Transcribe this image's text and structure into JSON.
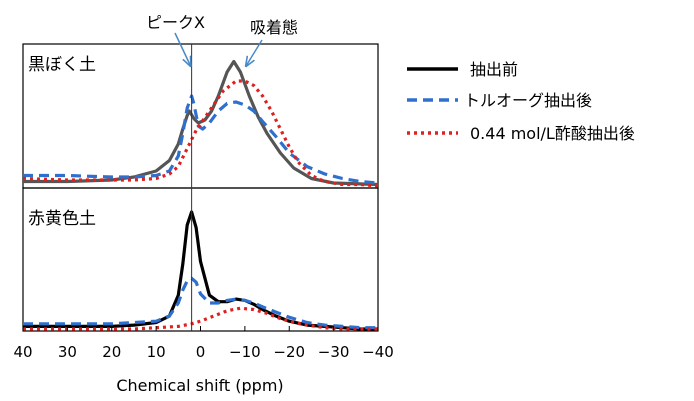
{
  "chart_data": [
    {
      "type": "line",
      "panel_label": "黒ぼく土",
      "xlabel": "Chemical shift (ppm)",
      "xlim": [
        40,
        -40
      ],
      "x_ticks": [
        40,
        30,
        20,
        10,
        0,
        -10,
        -20,
        -30,
        -40
      ],
      "x_tick_labels": [
        "40",
        "30",
        "20",
        "10",
        "0",
        "−10",
        "−20",
        "−30",
        "−40"
      ],
      "y_ticks": false,
      "grid": false,
      "legend_position": "right",
      "reference_line_x": 2,
      "annotations": [
        {
          "text": "ピークX",
          "points_to_x": 2
        },
        {
          "text": "吸着態",
          "points_to_x": -8
        }
      ],
      "series": [
        {
          "name": "抽出前",
          "color": "#555555",
          "style": "solid",
          "x": [
            40,
            30,
            20,
            15,
            10,
            7,
            5,
            4,
            3,
            2.5,
            1.5,
            0.5,
            -1,
            -2.5,
            -4,
            -6,
            -7.5,
            -9,
            -11,
            -13,
            -15,
            -18,
            -21,
            -25,
            -30,
            -40
          ],
          "y": [
            0.03,
            0.03,
            0.04,
            0.06,
            0.1,
            0.17,
            0.28,
            0.38,
            0.47,
            0.5,
            0.45,
            0.42,
            0.44,
            0.5,
            0.6,
            0.76,
            0.83,
            0.76,
            0.6,
            0.46,
            0.35,
            0.22,
            0.12,
            0.05,
            0.02,
            0.01
          ]
        },
        {
          "name": "トルオーグ抽出後",
          "color": "#2f6fce",
          "style": "dashed",
          "x": [
            40,
            30,
            20,
            15,
            10,
            7,
            5,
            4,
            3,
            2,
            1.5,
            0.5,
            -0.5,
            -2,
            -4,
            -6,
            -8,
            -10,
            -12,
            -14,
            -17,
            -20,
            -24,
            -28,
            -32,
            -36,
            -40
          ],
          "y": [
            0.07,
            0.07,
            0.06,
            0.06,
            0.07,
            0.1,
            0.2,
            0.35,
            0.52,
            0.6,
            0.55,
            0.4,
            0.38,
            0.42,
            0.5,
            0.55,
            0.56,
            0.54,
            0.5,
            0.43,
            0.33,
            0.22,
            0.13,
            0.08,
            0.05,
            0.03,
            0.02
          ]
        },
        {
          "name": "0.44 mol/L酢酸抽出後",
          "color": "#e02020",
          "style": "dotted",
          "x": [
            40,
            30,
            20,
            15,
            10,
            7,
            5,
            3,
            1,
            -2,
            -5,
            -8,
            -10,
            -12,
            -14,
            -16,
            -18,
            -20,
            -22,
            -25,
            -28,
            -32,
            -36,
            -40
          ],
          "y": [
            0.05,
            0.04,
            0.04,
            0.04,
            0.05,
            0.08,
            0.13,
            0.25,
            0.37,
            0.5,
            0.63,
            0.7,
            0.7,
            0.67,
            0.6,
            0.5,
            0.38,
            0.26,
            0.16,
            0.07,
            0.03,
            0.01,
            0.01,
            0.0
          ]
        }
      ]
    },
    {
      "type": "line",
      "panel_label": "赤黄色土",
      "xlabel": "Chemical shift (ppm)",
      "xlim": [
        40,
        -40
      ],
      "x_ticks": [
        40,
        30,
        20,
        10,
        0,
        -10,
        -20,
        -30,
        -40
      ],
      "x_tick_labels": [
        "40",
        "30",
        "20",
        "10",
        "0",
        "−10",
        "−20",
        "−30",
        "−40"
      ],
      "y_ticks": false,
      "grid": false,
      "reference_line_x": 2,
      "series": [
        {
          "name": "抽出前",
          "color": "#000000",
          "style": "solid",
          "x": [
            40,
            30,
            20,
            15,
            10,
            7,
            5,
            4,
            3,
            2,
            1,
            0,
            -2,
            -4,
            -6,
            -8,
            -10,
            -12,
            -14,
            -17,
            -20,
            -24,
            -28,
            -32,
            -36,
            -40
          ],
          "y": [
            0.02,
            0.02,
            0.02,
            0.03,
            0.05,
            0.1,
            0.26,
            0.5,
            0.8,
            0.9,
            0.78,
            0.52,
            0.26,
            0.21,
            0.21,
            0.23,
            0.22,
            0.19,
            0.15,
            0.1,
            0.06,
            0.03,
            0.02,
            0.01,
            0.0,
            0.0
          ]
        },
        {
          "name": "トルオーグ抽出後",
          "color": "#2f6fce",
          "style": "dashed",
          "x": [
            40,
            30,
            20,
            15,
            10,
            7,
            5,
            4,
            3,
            2,
            1,
            0,
            -2,
            -4,
            -6,
            -8,
            -10,
            -12,
            -14,
            -17,
            -20,
            -24,
            -28,
            -32,
            -36,
            -40
          ],
          "y": [
            0.04,
            0.04,
            0.04,
            0.05,
            0.06,
            0.1,
            0.2,
            0.3,
            0.37,
            0.39,
            0.36,
            0.27,
            0.2,
            0.2,
            0.22,
            0.23,
            0.22,
            0.2,
            0.17,
            0.13,
            0.09,
            0.05,
            0.03,
            0.02,
            0.01,
            0.01
          ]
        },
        {
          "name": "0.44 mol/L酢酸抽出後",
          "color": "#e02020",
          "style": "dotted",
          "x": [
            40,
            30,
            20,
            15,
            10,
            5,
            2,
            0,
            -3,
            -6,
            -9,
            -12,
            -15,
            -18,
            -21,
            -24,
            -28,
            -32,
            -36,
            -40
          ],
          "y": [
            0.0,
            0.0,
            0.0,
            0.0,
            0.01,
            0.02,
            0.04,
            0.06,
            0.1,
            0.14,
            0.16,
            0.15,
            0.12,
            0.08,
            0.05,
            0.03,
            0.01,
            0.0,
            0.0,
            0.0
          ]
        }
      ]
    }
  ]
}
